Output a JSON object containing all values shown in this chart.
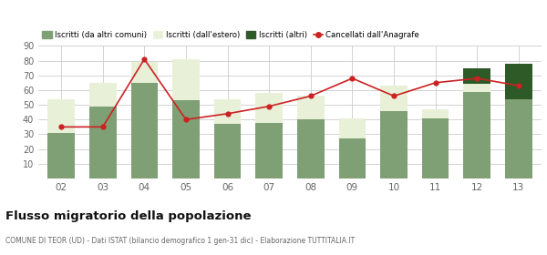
{
  "years": [
    "02",
    "03",
    "04",
    "05",
    "06",
    "07",
    "08",
    "09",
    "10",
    "11",
    "12",
    "13"
  ],
  "iscritti_altri_comuni": [
    31,
    49,
    65,
    53,
    37,
    38,
    40,
    27,
    46,
    41,
    59,
    54
  ],
  "iscritti_estero": [
    23,
    16,
    14,
    28,
    17,
    20,
    16,
    14,
    17,
    6,
    5,
    0
  ],
  "iscritti_altri": [
    0,
    0,
    0,
    0,
    0,
    0,
    0,
    0,
    0,
    0,
    11,
    24
  ],
  "cancellati": [
    35,
    35,
    81,
    40,
    44,
    49,
    56,
    68,
    56,
    65,
    68,
    63
  ],
  "color_altri_comuni": "#7f9f74",
  "color_estero": "#e8f0d8",
  "color_altri": "#2d5a27",
  "color_cancellati": "#cc2222",
  "bg_color": "#ffffff",
  "grid_color": "#cccccc",
  "ylim": [
    0,
    90
  ],
  "yticks": [
    0,
    10,
    20,
    30,
    40,
    50,
    60,
    70,
    80,
    90
  ],
  "title": "Flusso migratorio della popolazione",
  "subtitle": "COMUNE DI TEOR (UD) - Dati ISTAT (bilancio demografico 1 gen-31 dic) - Elaborazione TUTTITALIA.IT",
  "legend_labels": [
    "Iscritti (da altri comuni)",
    "Iscritti (dall'estero)",
    "Iscritti (altri)",
    "Cancellati dall'Anagrafe"
  ]
}
